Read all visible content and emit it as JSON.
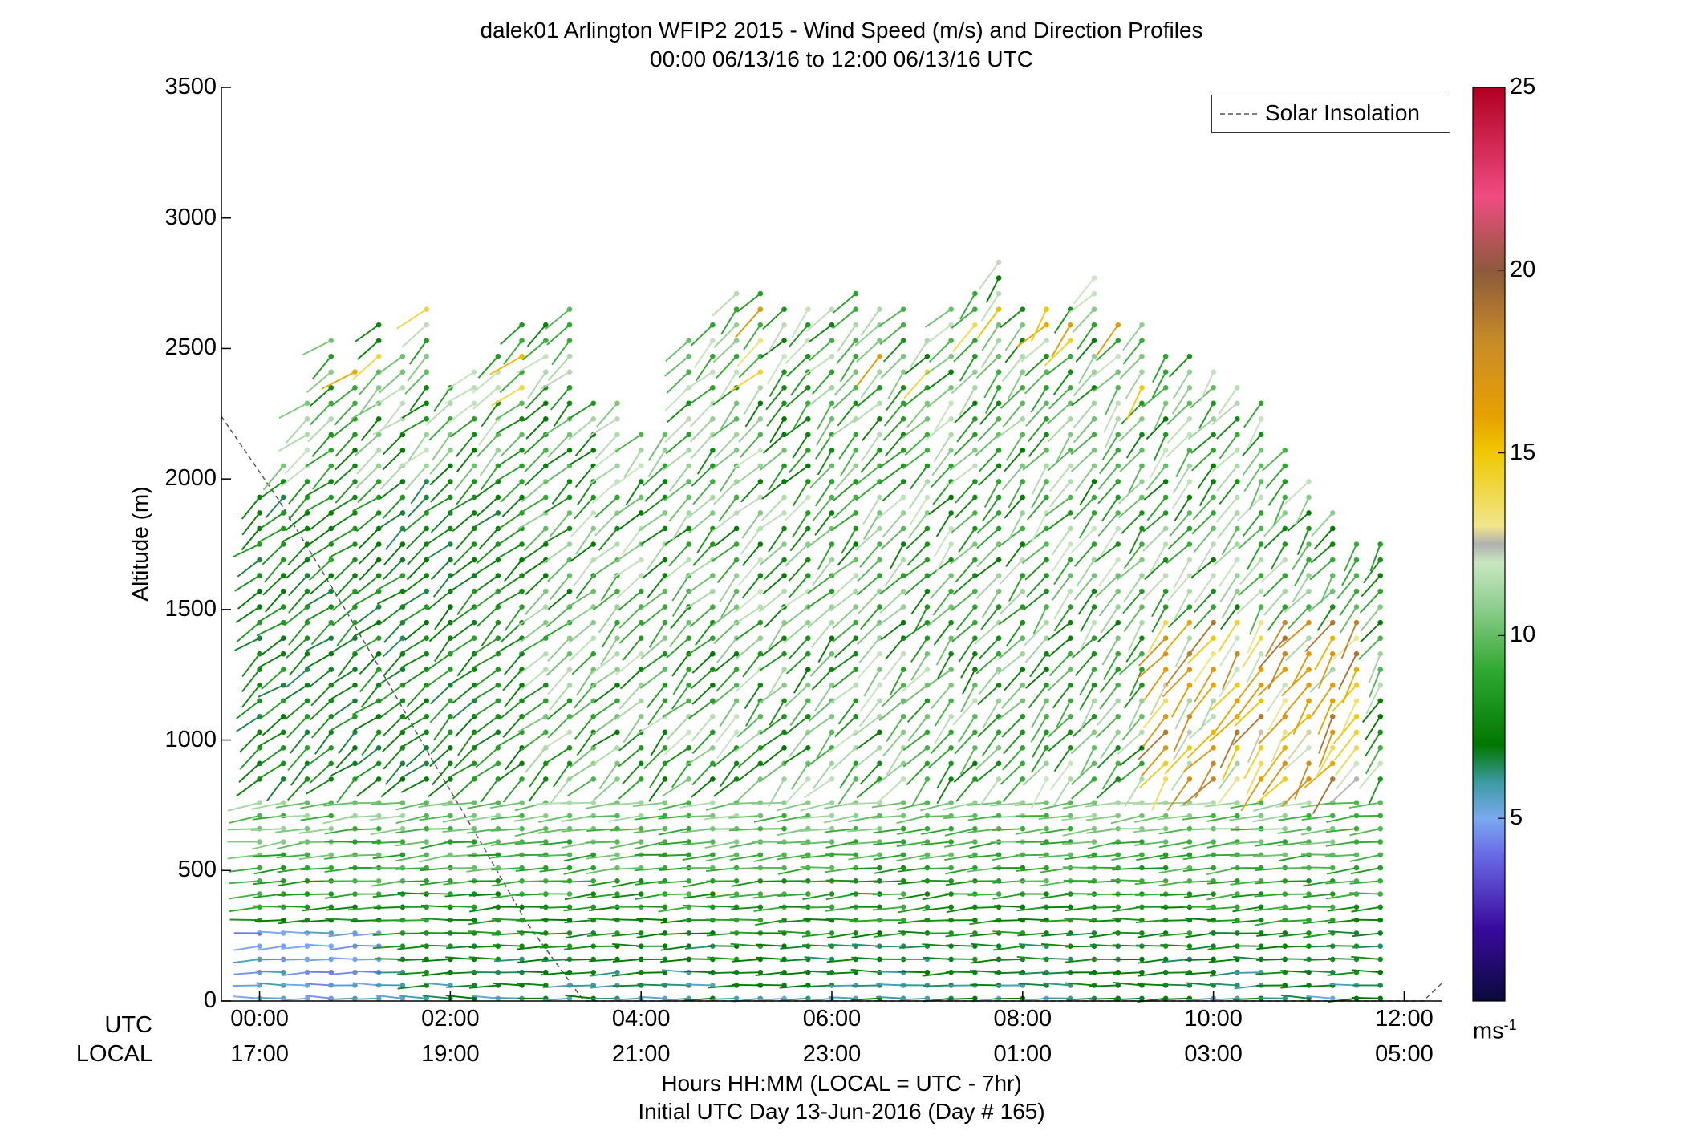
{
  "chart_data": {
    "type": "wind-barb-profile",
    "title": "dalek01 Arlington WFIP2 2015 - Wind Speed (m/s) and Direction Profiles",
    "subtitle": "00:00 06/13/16 to 12:00 06/13/16  UTC",
    "ylabel": "Altitude (m)",
    "xlabel_line1": "Hours HH:MM  (LOCAL = UTC - 7hr)",
    "xlabel_line2": "Initial UTC Day 13-Jun-2016 (Day # 165)",
    "ylim": [
      0,
      3500
    ],
    "xlim_hours_utc": [
      -0.4,
      12.4
    ],
    "yticks": [
      0,
      500,
      1000,
      1500,
      2000,
      2500,
      3000,
      3500
    ],
    "xtick_row_labels": [
      "UTC",
      "LOCAL"
    ],
    "xticks_utc": [
      "00:00",
      "02:00",
      "04:00",
      "06:00",
      "08:00",
      "10:00",
      "12:00"
    ],
    "xticks_local": [
      "17:00",
      "19:00",
      "21:00",
      "23:00",
      "01:00",
      "03:00",
      "05:00"
    ],
    "legend": {
      "entry": "Solar Insolation",
      "style": "dashed",
      "placement": "top-right"
    },
    "colorbar": {
      "range": [
        0,
        25
      ],
      "ticks": [
        5,
        10,
        15,
        20,
        25
      ],
      "unit_label": "ms",
      "unit_exponent": "-1",
      "stops": [
        {
          "v": 0,
          "c": "#0a0a3c"
        },
        {
          "v": 2,
          "c": "#3a0aa0"
        },
        {
          "v": 4,
          "c": "#6a6ae6"
        },
        {
          "v": 5,
          "c": "#7aaaf0"
        },
        {
          "v": 6,
          "c": "#3a9aa0"
        },
        {
          "v": 7,
          "c": "#007800"
        },
        {
          "v": 9,
          "c": "#2ea82e"
        },
        {
          "v": 11,
          "c": "#9ad29a"
        },
        {
          "v": 12,
          "c": "#c8e6c0"
        },
        {
          "v": 12.5,
          "c": "#b0b0b0"
        },
        {
          "v": 13,
          "c": "#f0e68c"
        },
        {
          "v": 15,
          "c": "#f0c800"
        },
        {
          "v": 16,
          "c": "#e8a000"
        },
        {
          "v": 18,
          "c": "#c88c28"
        },
        {
          "v": 20,
          "c": "#8c5a3c"
        },
        {
          "v": 22,
          "c": "#f04c82"
        },
        {
          "v": 25,
          "c": "#b00020"
        }
      ]
    },
    "profile_times_utc": [
      0.0,
      0.25,
      0.5,
      0.75,
      1.0,
      1.25,
      1.5,
      1.75,
      2.0,
      2.25,
      2.5,
      2.75,
      3.0,
      3.25,
      3.5,
      3.75,
      4.0,
      4.25,
      4.5,
      4.75,
      5.0,
      5.25,
      5.5,
      5.75,
      6.0,
      6.25,
      6.5,
      6.75,
      7.0,
      7.25,
      7.5,
      7.75,
      8.0,
      8.25,
      8.5,
      8.75,
      9.0,
      9.25,
      9.5,
      9.75,
      10.0,
      10.25,
      10.5,
      10.75,
      11.0,
      11.25,
      11.5,
      11.75
    ],
    "profile_top_altitude_m": [
      1950,
      2050,
      2300,
      2550,
      2450,
      2600,
      2500,
      2650,
      2400,
      2450,
      2500,
      2600,
      2600,
      2650,
      2300,
      2300,
      2200,
      2200,
      2550,
      2600,
      2750,
      2750,
      2650,
      2700,
      2650,
      2750,
      2700,
      2650,
      2550,
      2700,
      2750,
      2850,
      2650,
      2700,
      2700,
      2800,
      2600,
      2600,
      2500,
      2500,
      2450,
      2400,
      2300,
      2150,
      2000,
      1900,
      1800,
      1750
    ],
    "level_spacing_m": {
      "below_800": 50,
      "above_800": 60
    },
    "notes_values": {
      "dominant_speed_ms": "6-12",
      "high_speed_zone_hours_utc": [
        9.5,
        11.7
      ],
      "high_speed_zone_altitude_m": [
        800,
        1500
      ]
    },
    "solar_insolation_curve": [
      {
        "x": -0.4,
        "y": 2240
      },
      {
        "x": 0.2,
        "y": 1920
      },
      {
        "x": 0.8,
        "y": 1560
      },
      {
        "x": 1.3,
        "y": 1250
      },
      {
        "x": 1.8,
        "y": 930
      },
      {
        "x": 2.3,
        "y": 620
      },
      {
        "x": 2.8,
        "y": 300
      },
      {
        "x": 3.4,
        "y": 0
      },
      {
        "x": 12.2,
        "y": 0
      },
      {
        "x": 12.4,
        "y": 70
      }
    ]
  }
}
